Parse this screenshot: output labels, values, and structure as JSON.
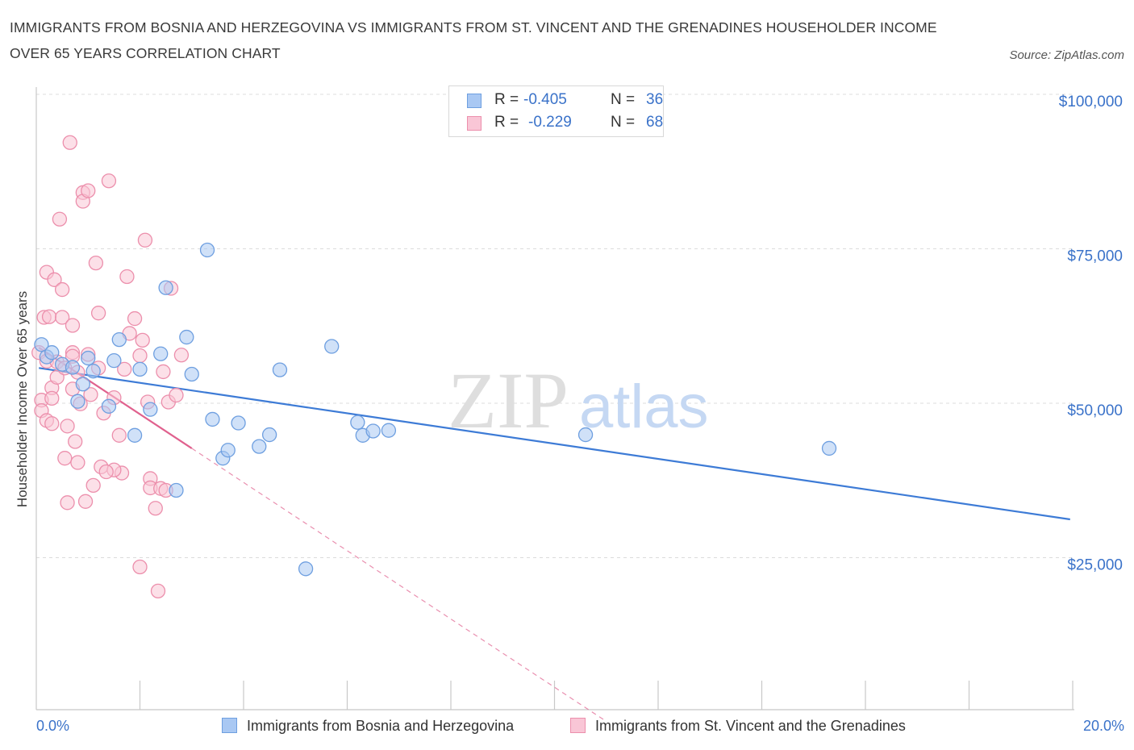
{
  "title": "IMMIGRANTS FROM BOSNIA AND HERZEGOVINA VS IMMIGRANTS FROM ST. VINCENT AND THE GRENADINES HOUSEHOLDER INCOME OVER 65 YEARS CORRELATION CHART",
  "source": "Source: ZipAtlas.com",
  "watermark": {
    "zip": "ZIP",
    "atlas": "atlas"
  },
  "legend": {
    "r_label": "R =",
    "n_label": "N =",
    "rows": [
      {
        "r": "-0.405",
        "n": "36",
        "color": "#a9c8f3",
        "border": "#6e9fe0"
      },
      {
        "r": "-0.229",
        "n": "68",
        "color": "#f9c6d6",
        "border": "#ec8fac"
      }
    ]
  },
  "chart_data": {
    "type": "scatter",
    "ylabel": "Householder Income Over 65 years",
    "x_unit": "%",
    "xlim": [
      0,
      20
    ],
    "ylim": [
      0,
      100000
    ],
    "x_tick_labels": [
      "0.0%",
      "20.0%"
    ],
    "y_ticks": [
      25000,
      50000,
      75000,
      100000
    ],
    "y_tick_labels": [
      "$25,000",
      "$50,000",
      "$75,000",
      "$100,000"
    ],
    "grid": true,
    "legend_position": "bottom",
    "series": [
      {
        "name": "Immigrants from Bosnia and Herzegovina",
        "color": "#a9c8f3",
        "stroke": "#6e9fe0",
        "trend_color": "#3d7bd6",
        "trend": {
          "x0": 0.05,
          "y0": 55700,
          "x1": 19.95,
          "y1": 31200,
          "dashed_to": 19.95
        },
        "points": [
          [
            0.1,
            59500
          ],
          [
            0.2,
            57500
          ],
          [
            0.3,
            58200
          ],
          [
            0.5,
            56300
          ],
          [
            0.7,
            55800
          ],
          [
            0.8,
            50300
          ],
          [
            0.9,
            53100
          ],
          [
            1.0,
            57300
          ],
          [
            1.1,
            55200
          ],
          [
            1.4,
            49500
          ],
          [
            1.5,
            56900
          ],
          [
            1.6,
            60300
          ],
          [
            1.9,
            44800
          ],
          [
            2.0,
            55500
          ],
          [
            2.2,
            49000
          ],
          [
            2.4,
            58000
          ],
          [
            2.5,
            68700
          ],
          [
            2.7,
            35900
          ],
          [
            2.9,
            60700
          ],
          [
            3.0,
            54700
          ],
          [
            3.3,
            74800
          ],
          [
            3.4,
            47400
          ],
          [
            3.6,
            41100
          ],
          [
            3.7,
            42400
          ],
          [
            3.9,
            46800
          ],
          [
            4.3,
            43000
          ],
          [
            4.5,
            44900
          ],
          [
            4.7,
            55400
          ],
          [
            5.2,
            23200
          ],
          [
            5.7,
            59200
          ],
          [
            6.2,
            46900
          ],
          [
            6.3,
            44800
          ],
          [
            6.5,
            45500
          ],
          [
            6.8,
            45600
          ],
          [
            10.6,
            44900
          ],
          [
            15.3,
            42700
          ]
        ]
      },
      {
        "name": "Immigrants from St. Vincent and the Grenadines",
        "color": "#f9c6d6",
        "stroke": "#ec8fac",
        "trend_color": "#e0618e",
        "trend": {
          "x0": 0.05,
          "y0": 59000,
          "x1": 3.0,
          "y1": 42700,
          "dashed_to": 11.0
        },
        "points": [
          [
            0.05,
            58200
          ],
          [
            0.1,
            50500
          ],
          [
            0.1,
            48800
          ],
          [
            0.15,
            63900
          ],
          [
            0.2,
            71200
          ],
          [
            0.2,
            56800
          ],
          [
            0.2,
            47200
          ],
          [
            0.25,
            64000
          ],
          [
            0.3,
            52500
          ],
          [
            0.3,
            50800
          ],
          [
            0.35,
            70000
          ],
          [
            0.4,
            56700
          ],
          [
            0.4,
            54200
          ],
          [
            0.45,
            79800
          ],
          [
            0.5,
            68400
          ],
          [
            0.5,
            63900
          ],
          [
            0.55,
            55700
          ],
          [
            0.6,
            46300
          ],
          [
            0.6,
            33900
          ],
          [
            0.65,
            92200
          ],
          [
            0.7,
            58200
          ],
          [
            0.7,
            57600
          ],
          [
            0.7,
            52300
          ],
          [
            0.75,
            43800
          ],
          [
            0.8,
            55000
          ],
          [
            0.8,
            40400
          ],
          [
            0.85,
            49900
          ],
          [
            0.9,
            84100
          ],
          [
            0.9,
            82700
          ],
          [
            0.95,
            34100
          ],
          [
            1.0,
            84400
          ],
          [
            1.0,
            57900
          ],
          [
            1.05,
            51400
          ],
          [
            1.1,
            36700
          ],
          [
            1.15,
            72700
          ],
          [
            1.2,
            64600
          ],
          [
            1.2,
            55700
          ],
          [
            1.25,
            39700
          ],
          [
            1.3,
            48400
          ],
          [
            1.4,
            86000
          ],
          [
            1.5,
            50900
          ],
          [
            1.6,
            44800
          ],
          [
            1.65,
            38700
          ],
          [
            1.7,
            55500
          ],
          [
            1.75,
            70500
          ],
          [
            1.8,
            61300
          ],
          [
            1.9,
            63700
          ],
          [
            2.0,
            23500
          ],
          [
            2.0,
            57700
          ],
          [
            2.05,
            60200
          ],
          [
            2.1,
            76400
          ],
          [
            2.15,
            50200
          ],
          [
            2.2,
            37800
          ],
          [
            2.2,
            36300
          ],
          [
            2.3,
            33000
          ],
          [
            2.35,
            19600
          ],
          [
            2.4,
            36200
          ],
          [
            2.45,
            55100
          ],
          [
            2.5,
            35900
          ],
          [
            2.55,
            50200
          ],
          [
            2.6,
            68600
          ],
          [
            2.7,
            51300
          ],
          [
            2.8,
            57800
          ],
          [
            1.5,
            39200
          ],
          [
            0.3,
            46700
          ],
          [
            0.55,
            41100
          ],
          [
            0.7,
            62600
          ],
          [
            1.35,
            38900
          ]
        ]
      }
    ]
  }
}
